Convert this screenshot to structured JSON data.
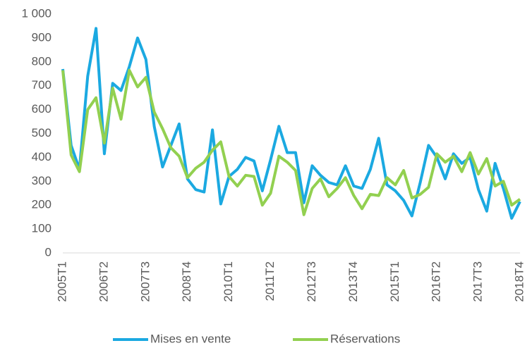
{
  "chart_data": {
    "type": "line",
    "categories": [
      "2005T1",
      null,
      null,
      null,
      null,
      "2006T2",
      null,
      null,
      null,
      null,
      "2007T3",
      null,
      null,
      null,
      null,
      "2008T4",
      null,
      null,
      null,
      null,
      "2010T1",
      null,
      null,
      null,
      null,
      "2011T2",
      null,
      null,
      null,
      null,
      "2012T3",
      null,
      null,
      null,
      null,
      "2013T4",
      null,
      null,
      null,
      null,
      "2015T1",
      null,
      null,
      null,
      null,
      "2016T2",
      null,
      null,
      null,
      null,
      "2017T3",
      null,
      null,
      null,
      null,
      "2018T4"
    ],
    "series": [
      {
        "name": "Mises en vente",
        "color": "#1ba9e1",
        "values": [
          770,
          450,
          350,
          740,
          940,
          415,
          710,
          680,
          780,
          900,
          810,
          530,
          360,
          450,
          540,
          310,
          265,
          255,
          515,
          205,
          320,
          350,
          400,
          385,
          260,
          390,
          530,
          420,
          420,
          210,
          365,
          325,
          295,
          285,
          365,
          280,
          270,
          350,
          480,
          285,
          260,
          220,
          155,
          295,
          450,
          400,
          310,
          415,
          375,
          400,
          265,
          175,
          375,
          270,
          145,
          215
        ]
      },
      {
        "name": "Réservations",
        "color": "#92d050",
        "values": [
          765,
          410,
          340,
          600,
          650,
          460,
          690,
          560,
          765,
          695,
          735,
          590,
          520,
          440,
          405,
          315,
          355,
          380,
          430,
          465,
          320,
          280,
          325,
          320,
          200,
          250,
          405,
          380,
          345,
          160,
          270,
          310,
          235,
          270,
          315,
          240,
          185,
          245,
          240,
          315,
          285,
          345,
          230,
          245,
          275,
          415,
          380,
          405,
          340,
          420,
          330,
          395,
          280,
          300,
          200,
          225
        ]
      }
    ],
    "ylim": [
      0,
      1000
    ],
    "yticks": [
      0,
      100,
      200,
      300,
      400,
      500,
      600,
      700,
      800,
      900,
      {
        "value": 1000,
        "label": "1 000"
      }
    ],
    "grid": false,
    "legend": "bottom"
  }
}
